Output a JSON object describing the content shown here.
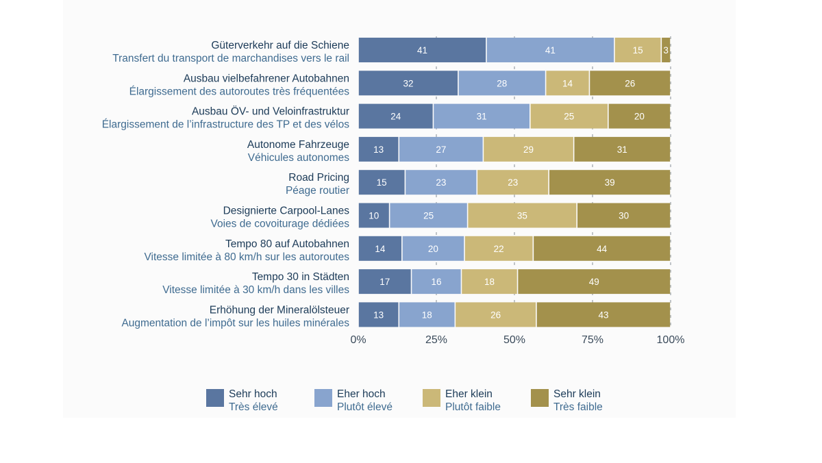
{
  "chart_data": {
    "type": "bar",
    "orientation": "horizontal",
    "stacked": true,
    "categories": [
      {
        "de": "Güterverkehr auf die Schiene",
        "fr": "Transfert du transport de marchandises vers le rail"
      },
      {
        "de": "Ausbau vielbefahrener Autobahnen",
        "fr": "Élargissement des autoroutes très fréquentées"
      },
      {
        "de": "Ausbau ÖV- und Veloinfrastruktur",
        "fr": "Élargissement de l’infrastructure des TP et des vélos"
      },
      {
        "de": "Autonome Fahrzeuge",
        "fr": "Véhicules autonomes"
      },
      {
        "de": "Road Pricing",
        "fr": "Péage routier"
      },
      {
        "de": "Designierte Carpool-Lanes",
        "fr": "Voies de covoiturage dédiées"
      },
      {
        "de": "Tempo 80 auf Autobahnen",
        "fr": "Vitesse limitée à 80 km/h sur les autoroutes"
      },
      {
        "de": "Tempo 30 in Städten",
        "fr": "Vitesse limitée à 30 km/h dans les villes"
      },
      {
        "de": "Erhöhung der Mineralölsteuer",
        "fr": "Augmentation de l’impôt sur les huiles minérales"
      }
    ],
    "series": [
      {
        "name": "Sehr hoch",
        "name_fr": "Très élevé",
        "color": "#5a76a0",
        "values": [
          41,
          32,
          24,
          13,
          15,
          10,
          14,
          17,
          13
        ]
      },
      {
        "name": "Eher hoch",
        "name_fr": "Plutôt élevé",
        "color": "#88a4ce",
        "values": [
          41,
          28,
          31,
          27,
          23,
          25,
          20,
          16,
          18
        ]
      },
      {
        "name": "Eher klein",
        "name_fr": "Plutôt faible",
        "color": "#cbb878",
        "values": [
          15,
          14,
          25,
          29,
          23,
          35,
          22,
          18,
          26
        ]
      },
      {
        "name": "Sehr klein",
        "name_fr": "Très faible",
        "color": "#a3914c",
        "values": [
          3,
          26,
          20,
          31,
          39,
          30,
          44,
          49,
          43
        ]
      }
    ],
    "xlim": [
      0,
      100
    ],
    "xticks": [
      "0%",
      "25%",
      "50%",
      "75%",
      "100%"
    ],
    "grid": true,
    "legend": "bottom"
  }
}
